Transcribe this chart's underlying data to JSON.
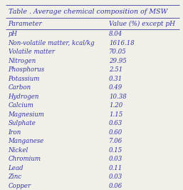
{
  "title": "Table . Average chemical composition of MSW",
  "col1_header": "Parameter",
  "col2_header": "Value (%) except pH",
  "rows": [
    [
      "pH",
      "8.04"
    ],
    [
      "Non-volatile matter, kcal/kg",
      "1616.18"
    ],
    [
      "Volatile matter",
      "70.05"
    ],
    [
      "Nitrogen",
      "29.95"
    ],
    [
      "Phosphorus",
      "2.51"
    ],
    [
      "Potassium",
      "0.31"
    ],
    [
      "Carbon",
      "0.49"
    ],
    [
      "Hydrogen",
      "10.38"
    ],
    [
      "Calcium",
      "1.20"
    ],
    [
      "Magnesium",
      "1.15"
    ],
    [
      "Sulphate",
      "0.63"
    ],
    [
      "Iron",
      "0.60"
    ],
    [
      "Manganese",
      "7.06"
    ],
    [
      "Nickel",
      "0.15"
    ],
    [
      "Chromium",
      "0.03"
    ],
    [
      "Lead",
      "0.11"
    ],
    [
      "Zinc",
      "0.03"
    ],
    [
      "Copper",
      "0.06"
    ]
  ],
  "bg_color": "#f0f0e8",
  "border_color": "#5555aa",
  "text_color": "#3333aa",
  "title_fontsize": 6.8,
  "header_fontsize": 6.5,
  "row_fontsize": 6.2,
  "font_family": "serif",
  "figwidth": 2.57,
  "figheight": 2.66,
  "dpi": 100
}
